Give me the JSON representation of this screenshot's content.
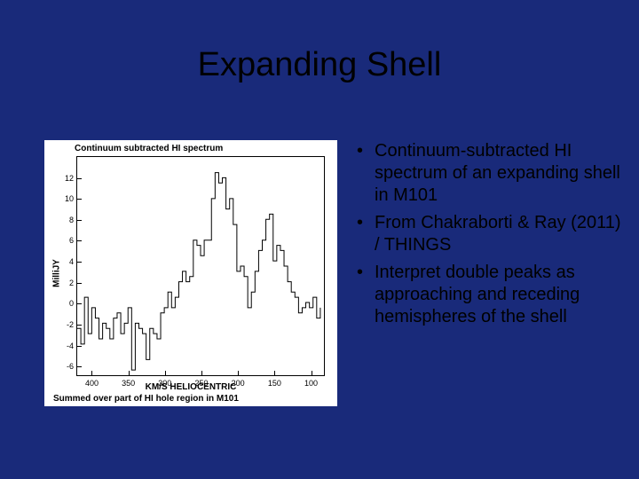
{
  "title": "Expanding Shell",
  "bullets": [
    "Continuum-subtracted HI spectrum of an expanding shell in M101",
    "From Chakraborti & Ray (2011) / THINGS",
    "Interpret double peaks as approaching and receding hemispheres of the shell"
  ],
  "chart": {
    "type": "line-step",
    "top_label": "Continuum subtracted HI spectrum",
    "caption": "Summed over part of HI hole region in M101",
    "xlabel": "KM/S HELIOCENTRIC",
    "ylabel": "MilliJY",
    "background_color": "#ffffff",
    "line_color": "#000000",
    "axis_color": "#000000",
    "line_width": 1,
    "xlim": [
      420,
      80
    ],
    "ylim": [
      -7,
      14
    ],
    "xticks": [
      400,
      350,
      300,
      250,
      200,
      150,
      100
    ],
    "yticks": [
      -6,
      -4,
      -2,
      0,
      2,
      4,
      6,
      8,
      10,
      12
    ],
    "title_fontsize": 10,
    "label_fontsize": 10,
    "tick_fontsize": 9,
    "x": [
      420,
      415,
      410,
      405,
      400,
      395,
      390,
      385,
      380,
      375,
      370,
      365,
      360,
      355,
      350,
      345,
      340,
      335,
      330,
      325,
      320,
      315,
      310,
      305,
      300,
      295,
      290,
      285,
      280,
      275,
      270,
      265,
      260,
      255,
      250,
      245,
      240,
      235,
      230,
      225,
      220,
      215,
      210,
      205,
      200,
      195,
      190,
      185,
      180,
      175,
      170,
      165,
      160,
      155,
      150,
      145,
      140,
      135,
      130,
      125,
      120,
      115,
      110,
      105,
      100,
      95,
      90,
      85
    ],
    "y": [
      -2.5,
      -4,
      0.5,
      -3,
      -0.5,
      -1.5,
      -3.5,
      -2,
      -2.5,
      -3.5,
      -1.5,
      -1,
      -3,
      -2,
      -0.5,
      -6.5,
      -2,
      -2.5,
      -3,
      -5.5,
      -2.5,
      -3,
      -3.5,
      -1,
      -0.5,
      1,
      -0.5,
      0.5,
      2,
      3,
      2,
      2.5,
      6,
      5.5,
      4.5,
      6,
      6,
      10,
      12.5,
      11.5,
      12,
      9,
      10,
      7.5,
      3,
      3.5,
      2.5,
      -0.5,
      1,
      3,
      5,
      6,
      8,
      8.5,
      4,
      5.5,
      5,
      3.5,
      2,
      1,
      0.5,
      -1,
      -0.5,
      0,
      -0.5,
      0.5,
      -1.5,
      -0.5
    ]
  }
}
